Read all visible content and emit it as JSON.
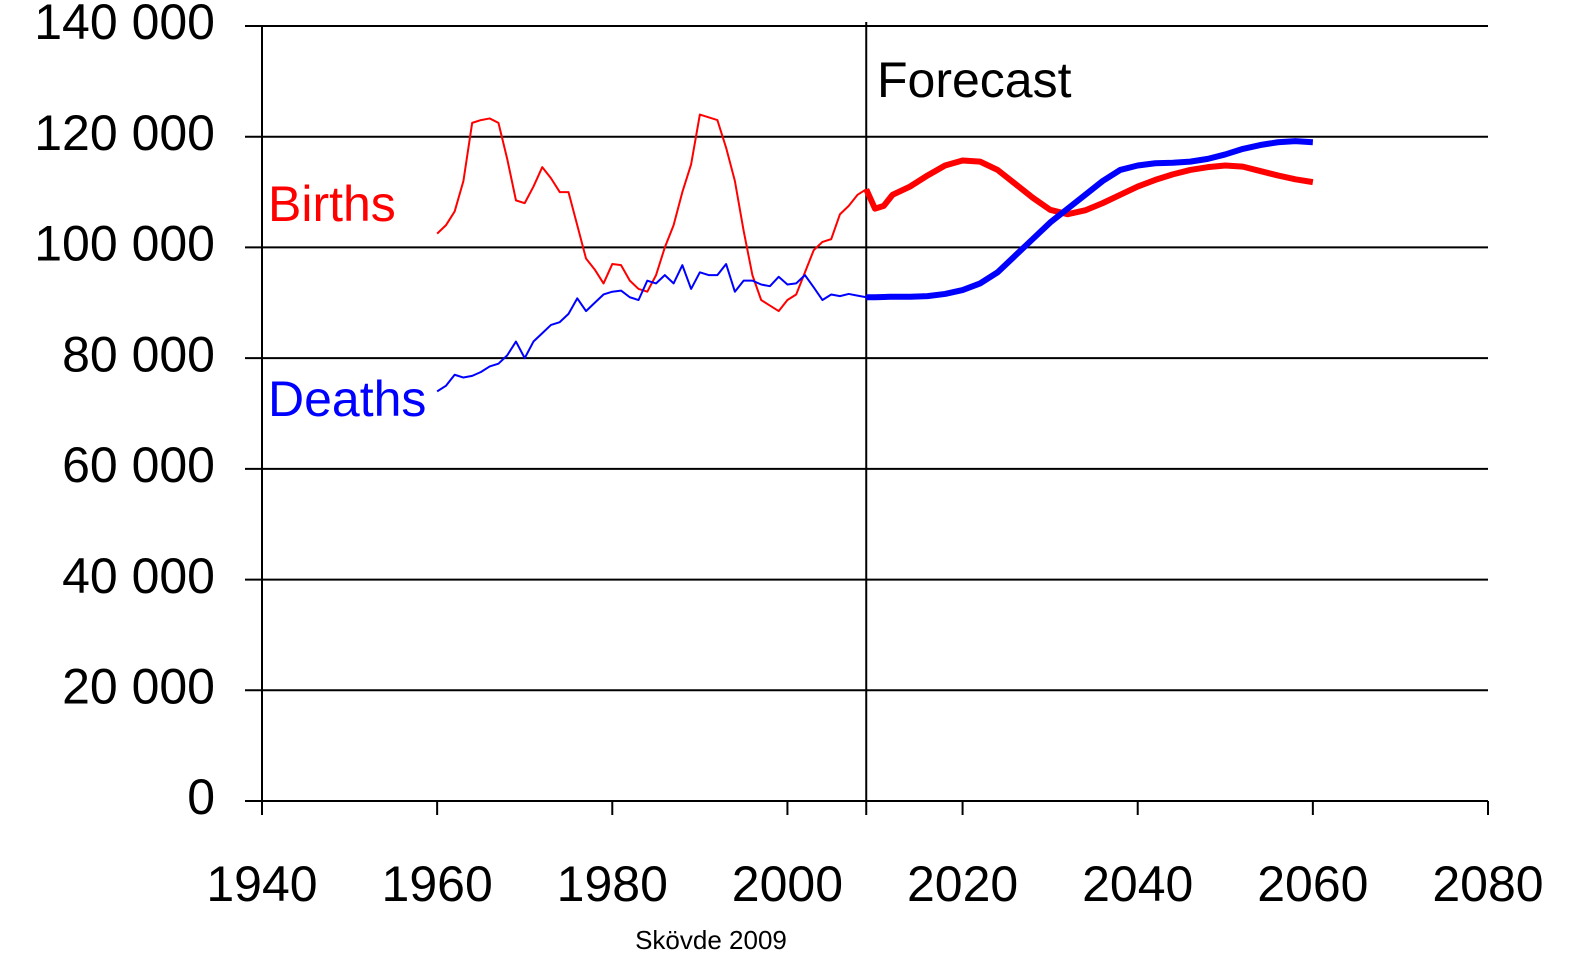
{
  "chart_data": {
    "type": "line",
    "x": [
      1960,
      1961,
      1962,
      1963,
      1964,
      1965,
      1966,
      1967,
      1968,
      1969,
      1970,
      1971,
      1972,
      1973,
      1974,
      1975,
      1976,
      1977,
      1978,
      1979,
      1980,
      1981,
      1982,
      1983,
      1984,
      1985,
      1986,
      1987,
      1988,
      1989,
      1990,
      1991,
      1992,
      1993,
      1994,
      1995,
      1996,
      1997,
      1998,
      1999,
      2000,
      2001,
      2002,
      2003,
      2004,
      2005,
      2006,
      2007,
      2008,
      2009,
      2010,
      2011,
      2012,
      2014,
      2016,
      2018,
      2020,
      2022,
      2024,
      2026,
      2028,
      2030,
      2032,
      2034,
      2036,
      2038,
      2040,
      2042,
      2044,
      2046,
      2048,
      2050,
      2052,
      2054,
      2056,
      2058,
      2060
    ],
    "series": [
      {
        "name": "Births",
        "color": "#ff0000",
        "values": [
          102500,
          104000,
          106500,
          112000,
          122500,
          123000,
          123300,
          122500,
          116000,
          108500,
          108000,
          111000,
          114500,
          112500,
          110000,
          110000,
          104000,
          98000,
          96000,
          93500,
          97000,
          96800,
          94000,
          92500,
          92000,
          95000,
          100000,
          104000,
          110000,
          115000,
          124000,
          123500,
          123000,
          118000,
          112000,
          103000,
          95000,
          90500,
          89500,
          88500,
          90500,
          91500,
          95500,
          99500,
          101000,
          101500,
          106000,
          107500,
          109500,
          110500,
          107000,
          107500,
          109500,
          111000,
          113000,
          114800,
          115700,
          115500,
          114000,
          111500,
          109000,
          106800,
          106000,
          106700,
          108000,
          109500,
          111000,
          112200,
          113200,
          114000,
          114500,
          114800,
          114600,
          113800,
          113000,
          112300,
          111800
        ]
      },
      {
        "name": "Deaths",
        "color": "#0000ff",
        "values": [
          74000,
          75000,
          77000,
          76500,
          76800,
          77500,
          78500,
          79000,
          80500,
          83000,
          80000,
          83000,
          84500,
          86000,
          86500,
          88000,
          90800,
          88500,
          90000,
          91500,
          92000,
          92200,
          91000,
          90500,
          94000,
          93500,
          95000,
          93500,
          96800,
          92500,
          95500,
          95000,
          95000,
          97000,
          92000,
          94000,
          94000,
          93300,
          93000,
          94700,
          93300,
          93500,
          95000,
          92800,
          90500,
          91500,
          91200,
          91600,
          91300,
          91000,
          91000,
          91050,
          91100,
          91100,
          91200,
          91600,
          92300,
          93500,
          95500,
          98500,
          101500,
          104500,
          107000,
          109500,
          112000,
          114000,
          114800,
          115200,
          115300,
          115500,
          116000,
          116800,
          117800,
          118500,
          119000,
          119200,
          119000
        ]
      }
    ],
    "forecast_x": 2009,
    "forecast_label": "Forecast",
    "source": "Skövde 2009",
    "xlim": [
      1940,
      2080
    ],
    "xticks": [
      1940,
      1960,
      1980,
      2000,
      2020,
      2040,
      2060,
      2080
    ],
    "ylim": [
      0,
      140000
    ],
    "yticks": [
      0,
      {
        "value": 20000,
        "label": "20 000"
      },
      {
        "value": 40000,
        "label": "40 000"
      },
      {
        "value": 60000,
        "label": "60 000"
      },
      {
        "value": 80000,
        "label": "80 000"
      },
      {
        "value": 100000,
        "label": "100 000"
      },
      {
        "value": 120000,
        "label": "120 000"
      },
      {
        "value": 140000,
        "label": "140 000"
      }
    ],
    "grid": true
  }
}
